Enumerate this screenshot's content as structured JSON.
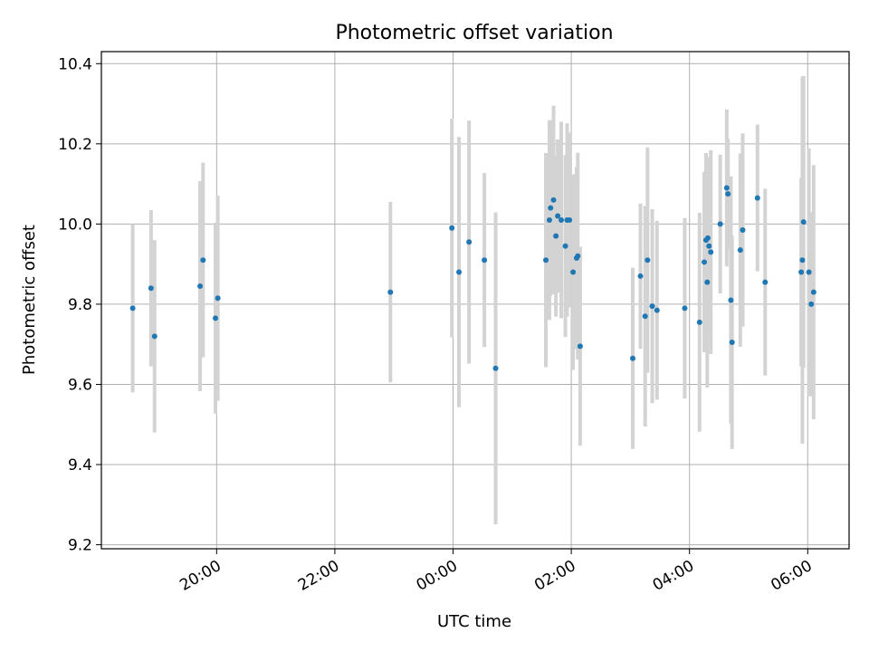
{
  "chart_data": {
    "type": "scatter",
    "title": "Photometric offset variation",
    "xlabel": "UTC time",
    "ylabel": "Photometric offset",
    "xlim": [
      -5.95,
      6.7
    ],
    "ylim": [
      9.19,
      10.43
    ],
    "grid": true,
    "x_ticks": [
      {
        "value": -4,
        "label": "20:00"
      },
      {
        "value": -2,
        "label": "22:00"
      },
      {
        "value": 0,
        "label": "00:00"
      },
      {
        "value": 2,
        "label": "02:00"
      },
      {
        "value": 4,
        "label": "04:00"
      },
      {
        "value": 6,
        "label": "06:00"
      }
    ],
    "y_ticks": [
      {
        "value": 9.2,
        "label": "9.2"
      },
      {
        "value": 9.4,
        "label": "9.4"
      },
      {
        "value": 9.6,
        "label": "9.6"
      },
      {
        "value": 9.8,
        "label": "9.8"
      },
      {
        "value": 10.0,
        "label": "10.0"
      },
      {
        "value": 10.2,
        "label": "10.2"
      },
      {
        "value": 10.4,
        "label": "10.4"
      }
    ],
    "series": [
      {
        "name": "offset",
        "color": "#1f77b4",
        "error_color": "#d3d3d3",
        "x": [
          -5.42,
          -5.11,
          -5.05,
          -4.28,
          -4.23,
          -4.02,
          -3.98,
          -1.06,
          -0.02,
          0.1,
          0.27,
          0.53,
          0.72,
          1.57,
          1.63,
          1.65,
          1.7,
          1.74,
          1.77,
          1.83,
          1.9,
          1.93,
          1.97,
          2.03,
          2.09,
          2.11,
          2.15,
          3.04,
          3.17,
          3.25,
          3.29,
          3.37,
          3.45,
          3.92,
          4.17,
          4.25,
          4.28,
          4.3,
          4.31,
          4.33,
          4.36,
          4.52,
          4.63,
          4.65,
          4.7,
          4.72,
          4.86,
          4.9,
          5.15,
          5.28,
          5.89,
          5.91,
          5.93,
          6.02,
          6.06,
          6.1
        ],
        "y": [
          9.79,
          9.84,
          9.72,
          9.845,
          9.91,
          9.765,
          9.815,
          9.83,
          9.99,
          9.88,
          9.955,
          9.91,
          9.64,
          9.91,
          10.01,
          10.04,
          10.06,
          9.97,
          10.02,
          10.01,
          9.945,
          10.01,
          10.01,
          9.88,
          9.915,
          9.92,
          9.695,
          9.665,
          9.87,
          9.77,
          9.91,
          9.795,
          9.785,
          9.79,
          9.755,
          9.905,
          9.96,
          9.855,
          9.965,
          9.945,
          9.93,
          10.0,
          10.09,
          10.075,
          9.81,
          9.705,
          9.935,
          9.985,
          10.065,
          9.855,
          9.88,
          9.91,
          10.005,
          9.88,
          9.8,
          9.83
        ],
        "err": [
          0.21,
          0.195,
          0.24,
          0.262,
          0.243,
          0.238,
          0.256,
          0.225,
          0.273,
          0.337,
          0.303,
          0.217,
          0.389,
          0.267,
          0.249,
          0.219,
          0.235,
          0.201,
          0.191,
          0.245,
          0.227,
          0.241,
          0.218,
          0.244,
          0.227,
          0.258,
          0.248,
          0.226,
          0.181,
          0.275,
          0.281,
          0.242,
          0.223,
          0.225,
          0.273,
          0.225,
          0.217,
          0.263,
          0.177,
          0.222,
          0.254,
          0.173,
          0.196,
          0.138,
          0.309,
          0.266,
          0.241,
          0.241,
          0.183,
          0.233,
          0.235,
          0.458,
          0.364,
          0.309,
          0.23,
          0.317
        ]
      }
    ]
  }
}
